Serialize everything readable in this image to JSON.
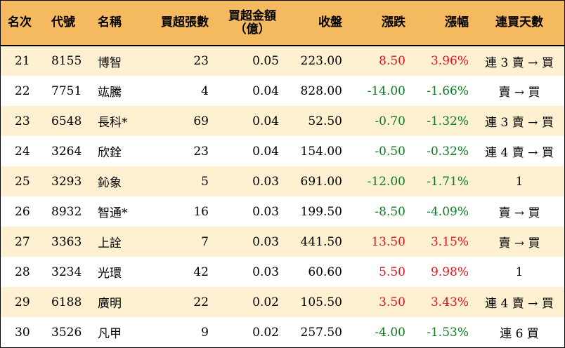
{
  "colors": {
    "header_bg": "#f5b95f",
    "stripe_bg": "#fdf1d2",
    "up": "#e8111b",
    "down": "#0a7d1f"
  },
  "headers": {
    "rank": "名次",
    "code": "代號",
    "name": "名稱",
    "buy_volume": "買超張數",
    "buy_amount_line1": "買超金額",
    "buy_amount_line2": "（億）",
    "close": "收盤",
    "change": "漲跌",
    "change_pct": "漲幅",
    "consecutive_days": "連買天數"
  },
  "rows": [
    {
      "rank": "21",
      "code": "8155",
      "name": "博智",
      "buy_volume": "23",
      "buy_amount": "0.05",
      "close": "223.00",
      "change": "8.50",
      "change_pct": "3.96%",
      "trend": "up",
      "days": "連 3 賣 → 買"
    },
    {
      "rank": "22",
      "code": "7751",
      "name": "竑騰",
      "buy_volume": "4",
      "buy_amount": "0.04",
      "close": "828.00",
      "change": "-14.00",
      "change_pct": "-1.66%",
      "trend": "down",
      "days": "賣 → 買"
    },
    {
      "rank": "23",
      "code": "6548",
      "name": "長科*",
      "buy_volume": "69",
      "buy_amount": "0.04",
      "close": "52.50",
      "change": "-0.70",
      "change_pct": "-1.32%",
      "trend": "down",
      "days": "連 3 賣 → 買"
    },
    {
      "rank": "24",
      "code": "3264",
      "name": "欣銓",
      "buy_volume": "23",
      "buy_amount": "0.04",
      "close": "154.00",
      "change": "-0.50",
      "change_pct": "-0.32%",
      "trend": "down",
      "days": "連 4 賣 → 買"
    },
    {
      "rank": "25",
      "code": "3293",
      "name": "鈊象",
      "buy_volume": "5",
      "buy_amount": "0.03",
      "close": "691.00",
      "change": "-12.00",
      "change_pct": "-1.71%",
      "trend": "down",
      "days": "1"
    },
    {
      "rank": "26",
      "code": "8932",
      "name": "智通*",
      "buy_volume": "16",
      "buy_amount": "0.03",
      "close": "199.50",
      "change": "-8.50",
      "change_pct": "-4.09%",
      "trend": "down",
      "days": "賣 → 買"
    },
    {
      "rank": "27",
      "code": "3363",
      "name": "上詮",
      "buy_volume": "7",
      "buy_amount": "0.03",
      "close": "441.50",
      "change": "13.50",
      "change_pct": "3.15%",
      "trend": "up",
      "days": "賣 → 買"
    },
    {
      "rank": "28",
      "code": "3234",
      "name": "光環",
      "buy_volume": "42",
      "buy_amount": "0.03",
      "close": "60.60",
      "change": "5.50",
      "change_pct": "9.98%",
      "trend": "up",
      "days": "1"
    },
    {
      "rank": "29",
      "code": "6188",
      "name": "廣明",
      "buy_volume": "22",
      "buy_amount": "0.02",
      "close": "105.50",
      "change": "3.50",
      "change_pct": "3.43%",
      "trend": "up",
      "days": "連 4 賣 → 買"
    },
    {
      "rank": "30",
      "code": "3526",
      "name": "凡甲",
      "buy_volume": "9",
      "buy_amount": "0.02",
      "close": "257.50",
      "change": "-4.00",
      "change_pct": "-1.53%",
      "trend": "down",
      "days": "連 6 買"
    }
  ]
}
